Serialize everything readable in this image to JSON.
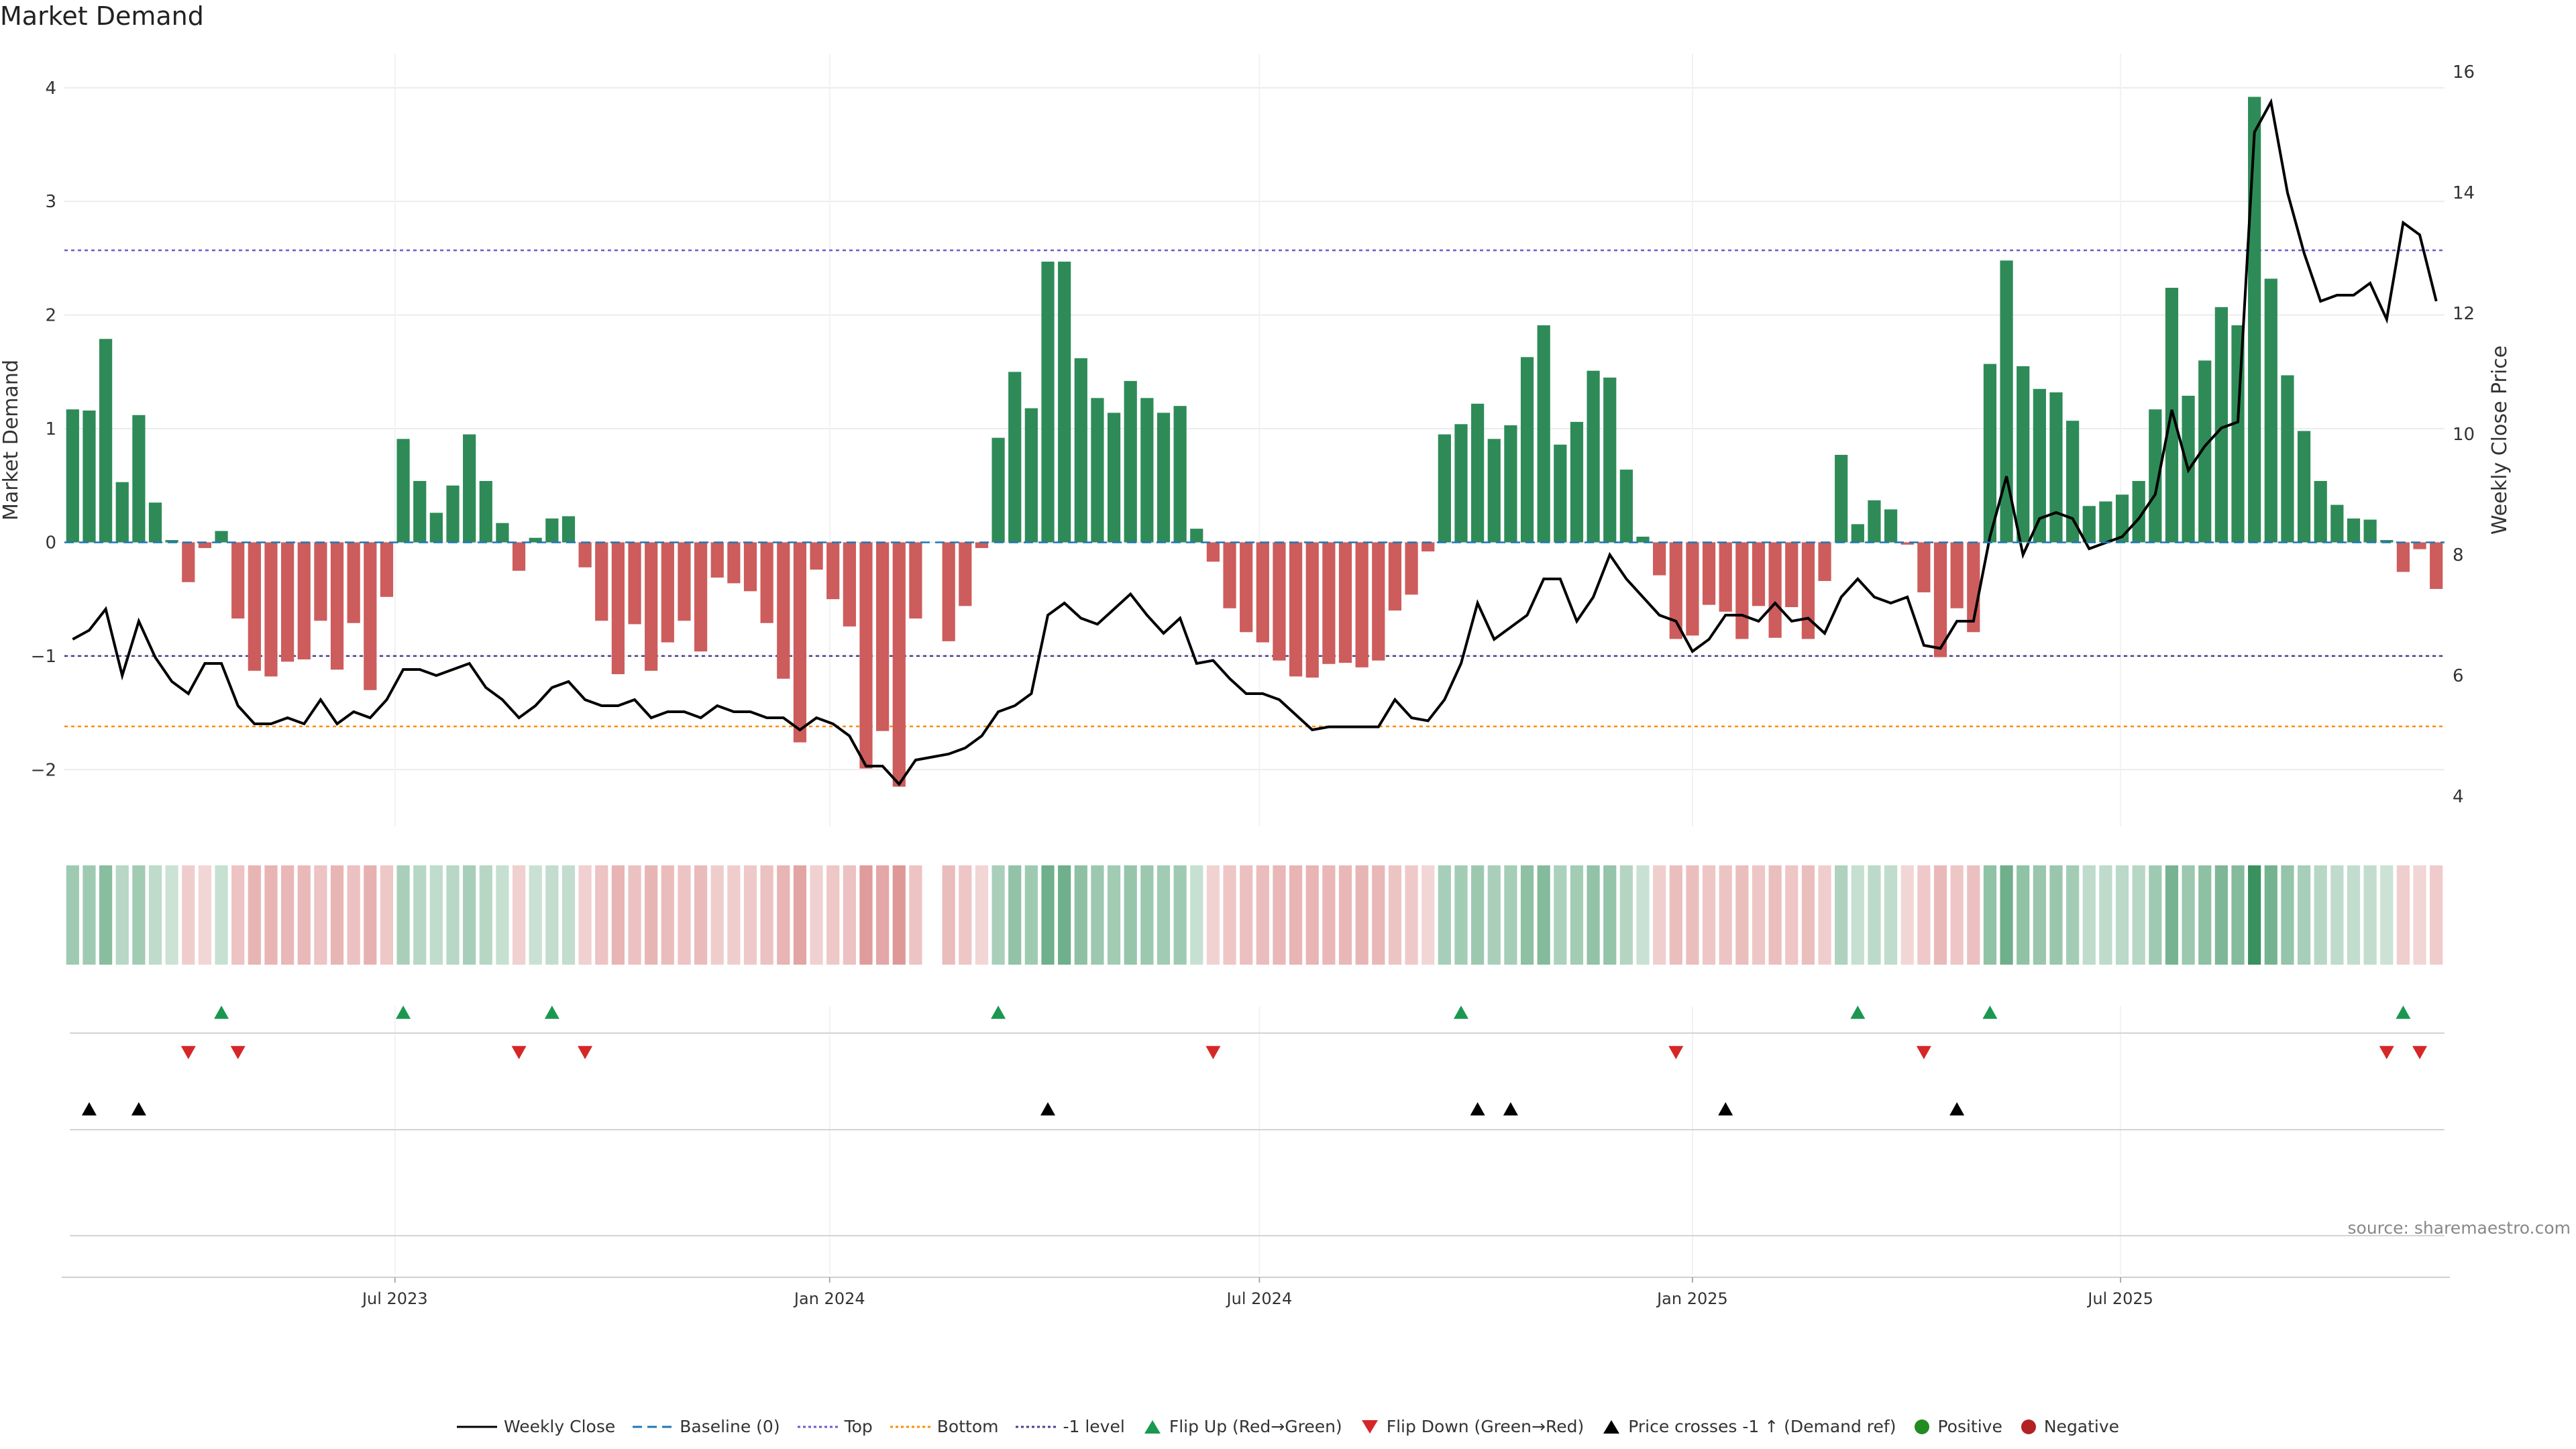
{
  "title": "Market Demand",
  "source": "source: sharemaestro.com",
  "colors": {
    "positive": "#2e8b57",
    "negative": "#cd5c5c",
    "price": "#000000",
    "baseline": "#1f77b4",
    "top": "#6a5acd",
    "bottom": "#ff8c00",
    "minus_one": "#483d8b",
    "flip_up": "#1a9850",
    "flip_down": "#d62728",
    "cross": "#000000",
    "positive_dot": "#228b22",
    "negative_dot": "#b22222"
  },
  "chart_data": {
    "type": "bar",
    "title": "Market Demand",
    "ylabel": "Market Demand",
    "y2label": "Weekly Close Price",
    "ylim": [
      -2.5,
      4.3
    ],
    "y2lim": [
      3.5,
      16.3
    ],
    "yticks": [
      -2,
      -1,
      0,
      1,
      2,
      3,
      4
    ],
    "y2ticks": [
      4,
      6,
      8,
      10,
      12,
      14,
      16
    ],
    "xticks": [
      {
        "label": "Jul 2023",
        "week": 20
      },
      {
        "label": "Jan 2024",
        "week": 46.3
      },
      {
        "label": "Jul 2024",
        "week": 72.3
      },
      {
        "label": "Jan 2025",
        "week": 98.5
      },
      {
        "label": "Jul 2025",
        "week": 124.4
      }
    ],
    "levels": {
      "baseline": 0,
      "top": 2.57,
      "bottom": -1.62,
      "minus_one": -1
    },
    "demand": [
      1.17,
      1.16,
      1.79,
      0.53,
      1.12,
      0.35,
      0.02,
      -0.35,
      -0.05,
      0.1,
      -0.67,
      -1.13,
      -1.18,
      -1.05,
      -1.03,
      -0.69,
      -1.12,
      -0.71,
      -1.3,
      -0.48,
      0.91,
      0.54,
      0.26,
      0.5,
      0.95,
      0.54,
      0.17,
      -0.25,
      0.04,
      0.21,
      0.23,
      -0.22,
      -0.69,
      -1.16,
      -0.72,
      -1.13,
      -0.88,
      -0.69,
      -0.96,
      -0.31,
      -0.36,
      -0.43,
      -0.71,
      -1.2,
      -1.76,
      -0.24,
      -0.5,
      -0.74,
      -1.99,
      -1.66,
      -2.15,
      -0.67,
      null,
      -0.87,
      -0.56,
      -0.05,
      0.92,
      1.5,
      1.18,
      2.47,
      2.47,
      1.62,
      1.27,
      1.14,
      1.42,
      1.27,
      1.14,
      1.2,
      0.12,
      -0.17,
      -0.58,
      -0.79,
      -0.88,
      -1.04,
      -1.18,
      -1.19,
      -1.07,
      -1.06,
      -1.1,
      -1.04,
      -0.6,
      -0.46,
      -0.08,
      0.95,
      1.04,
      1.22,
      0.91,
      1.03,
      1.63,
      1.91,
      0.86,
      1.06,
      1.51,
      1.45,
      0.64,
      0.05,
      -0.29,
      -0.85,
      -0.82,
      -0.55,
      -0.61,
      -0.85,
      -0.56,
      -0.84,
      -0.57,
      -0.85,
      -0.34,
      0.77,
      0.16,
      0.37,
      0.29,
      -0.02,
      -0.44,
      -1.01,
      -0.58,
      -0.79,
      1.57,
      2.48,
      1.55,
      1.35,
      1.32,
      1.07,
      0.32,
      0.36,
      0.42,
      0.54,
      1.17,
      2.24,
      1.29,
      1.6,
      2.07,
      1.91,
      3.92,
      2.32,
      1.47,
      0.98,
      0.54,
      0.33,
      0.21,
      0.2,
      0.02,
      -0.26,
      -0.06,
      -0.41
    ],
    "price": [
      6.6,
      6.75,
      7.1,
      6.0,
      6.9,
      6.3,
      5.9,
      5.7,
      6.2,
      6.2,
      5.5,
      5.2,
      5.2,
      5.3,
      5.2,
      5.6,
      5.2,
      5.4,
      5.3,
      5.6,
      6.1,
      6.1,
      6.0,
      6.1,
      6.2,
      5.8,
      5.6,
      5.3,
      5.5,
      5.8,
      5.9,
      5.6,
      5.5,
      5.5,
      5.6,
      5.3,
      5.4,
      5.4,
      5.3,
      5.5,
      5.4,
      5.4,
      5.3,
      5.3,
      5.1,
      5.3,
      5.2,
      5.0,
      4.5,
      4.5,
      4.2,
      4.6,
      4.65,
      4.7,
      4.8,
      5.0,
      5.4,
      5.5,
      5.7,
      7.0,
      7.2,
      6.95,
      6.85,
      7.1,
      7.35,
      7.0,
      6.7,
      6.95,
      6.2,
      6.25,
      5.95,
      5.7,
      5.7,
      5.6,
      5.35,
      5.1,
      5.15,
      5.15,
      5.15,
      5.15,
      5.6,
      5.3,
      5.25,
      5.6,
      6.2,
      7.2,
      6.6,
      6.8,
      7.0,
      7.6,
      7.6,
      6.9,
      7.3,
      8.0,
      7.6,
      7.3,
      7.0,
      6.9,
      6.4,
      6.6,
      7.0,
      7.0,
      6.9,
      7.2,
      6.9,
      6.95,
      6.7,
      7.3,
      7.6,
      7.3,
      7.2,
      7.3,
      6.5,
      6.45,
      6.9,
      6.9,
      8.3,
      9.3,
      8.0,
      8.6,
      8.7,
      8.6,
      8.1,
      8.2,
      8.3,
      8.6,
      9.0,
      10.4,
      9.4,
      9.8,
      10.1,
      10.2,
      15.0,
      15.5,
      14.0,
      13.0,
      12.2,
      12.3,
      12.3,
      12.5,
      11.9,
      13.5,
      13.3,
      12.2
    ]
  },
  "flip_up_weeks": [
    9,
    20,
    29,
    56,
    84,
    108,
    116,
    141
  ],
  "flip_down_weeks": [
    7,
    10,
    27,
    31,
    69,
    97,
    112,
    140,
    142
  ],
  "cross_weeks": [
    1,
    4,
    59,
    85,
    87,
    100,
    114
  ],
  "legend": {
    "weekly_close": "Weekly Close",
    "baseline": "Baseline (0)",
    "top": "Top",
    "bottom": "Bottom",
    "minus_one": "-1 level",
    "flip_up": "Flip Up (Red→Green)",
    "flip_down": "Flip Down (Green→Red)",
    "price_cross": "Price crosses -1 ↑ (Demand ref)",
    "positive": "Positive",
    "negative": "Negative"
  }
}
